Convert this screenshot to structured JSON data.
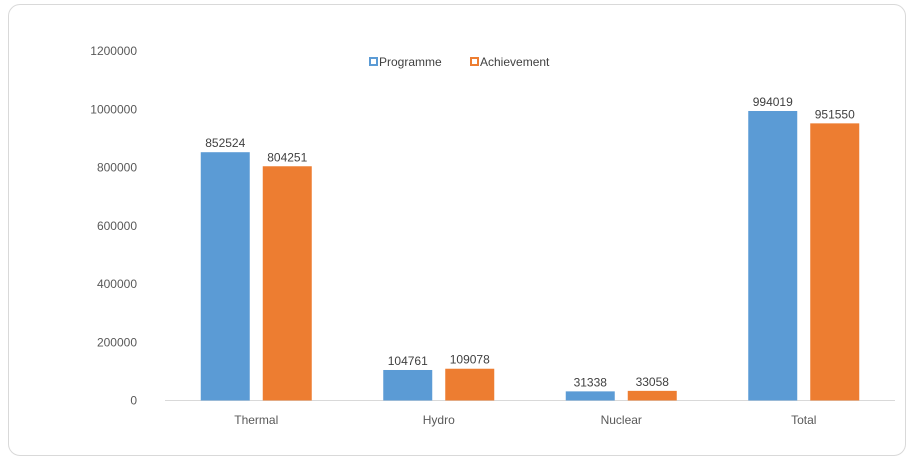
{
  "chart_data": {
    "type": "bar",
    "title": "",
    "xlabel": "",
    "ylabel": "",
    "categories": [
      "Thermal",
      "Hydro",
      "Nuclear",
      "Total"
    ],
    "series": [
      {
        "name": "Programme",
        "color": "#5b9bd5",
        "values": [
          852524,
          104761,
          31338,
          994019
        ]
      },
      {
        "name": "Achievement",
        "color": "#ed7d31",
        "values": [
          804251,
          109078,
          33058,
          951550
        ]
      }
    ],
    "ylim": [
      0,
      1200000
    ],
    "yticks": [
      "0",
      "200000",
      "400000",
      "600000",
      "800000",
      "1000000",
      "1200000"
    ],
    "grid": false,
    "legend_position": "top-center",
    "data_labels": [
      [
        "852524",
        "104761",
        "31338",
        "994019"
      ],
      [
        "804251",
        "109078",
        "33058",
        "951550"
      ]
    ]
  }
}
